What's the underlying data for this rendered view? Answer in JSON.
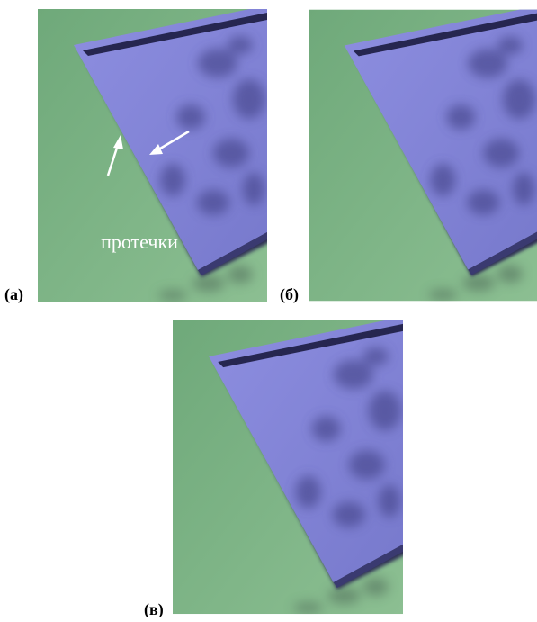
{
  "panels": [
    {
      "label": "(а)",
      "annotation": "протечки"
    },
    {
      "label": "(б)"
    },
    {
      "label": "(в)"
    }
  ]
}
